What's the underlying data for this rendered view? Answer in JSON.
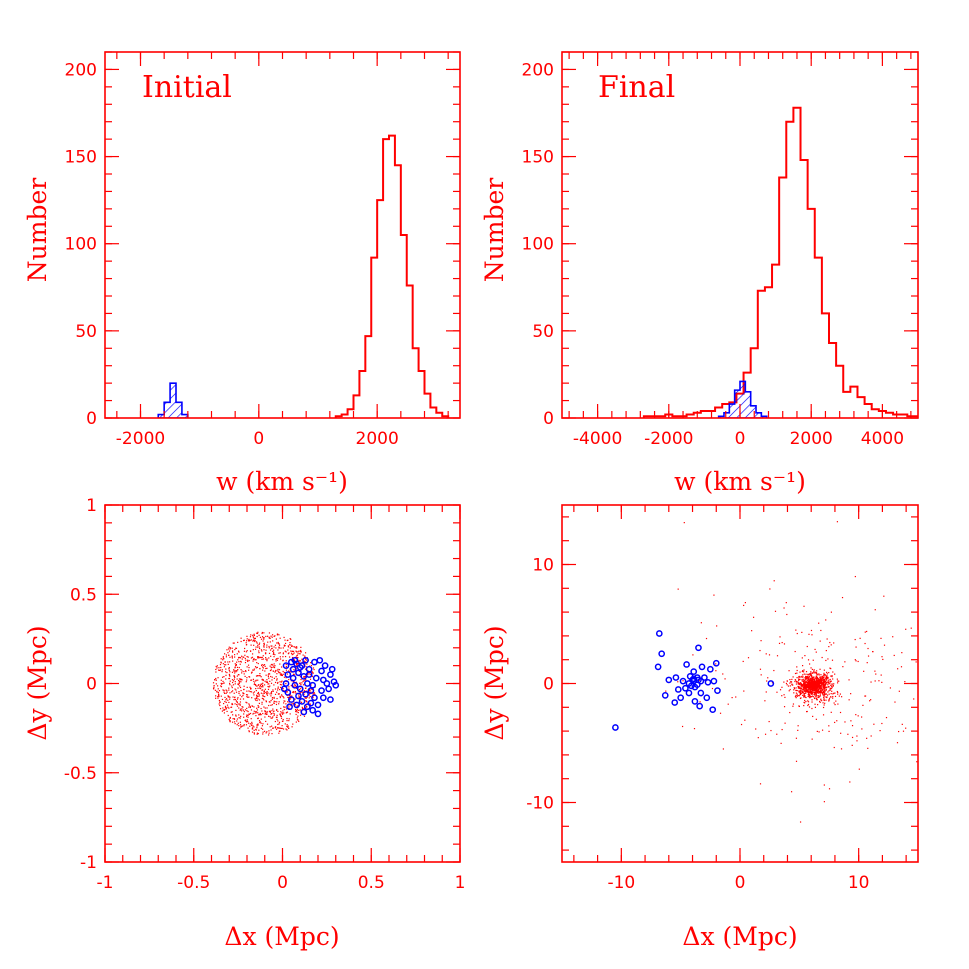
{
  "colors": {
    "primary": "#ff0000",
    "secondary": "#0000ff",
    "background": "#ffffff"
  },
  "chart_data": [
    {
      "id": "p1",
      "type": "histogram",
      "title": "Initial",
      "xlabel": "w (km s⁻¹)",
      "ylabel": "Number",
      "xlim": [
        -2600,
        3400
      ],
      "ylim": [
        0,
        210
      ],
      "xticks": [
        -2000,
        0,
        2000
      ],
      "yticks": [
        0,
        50,
        100,
        150,
        200
      ],
      "series": [
        {
          "color": "#ff0000",
          "bin_start": 1300,
          "bin_width": 100,
          "values": [
            1,
            2,
            5,
            13,
            27,
            47,
            92,
            125,
            160,
            162,
            145,
            105,
            76,
            40,
            27,
            14,
            6,
            3,
            1
          ]
        },
        {
          "color": "#0000ff",
          "hatched": true,
          "bin_start": -1700,
          "bin_width": 100,
          "values": [
            2,
            9,
            20,
            9,
            2
          ]
        }
      ]
    },
    {
      "id": "p2",
      "type": "histogram",
      "title": "Final",
      "xlabel": "w (km s⁻¹)",
      "ylabel": "Number",
      "xlim": [
        -5000,
        5000
      ],
      "ylim": [
        0,
        210
      ],
      "xticks": [
        -4000,
        -2000,
        0,
        2000,
        4000
      ],
      "yticks": [
        0,
        50,
        100,
        150,
        200
      ],
      "series": [
        {
          "color": "#ff0000",
          "bin_start": -2700,
          "bin_width": 200,
          "values": [
            1,
            1,
            1,
            2,
            1,
            1,
            2,
            3,
            4,
            4,
            6,
            8,
            9,
            14,
            26,
            40,
            73,
            75,
            88,
            138,
            170,
            178,
            148,
            120,
            92,
            60,
            43,
            30,
            15,
            18,
            12,
            8,
            5,
            4,
            3,
            2,
            2,
            1,
            1,
            1
          ]
        },
        {
          "color": "#0000ff",
          "hatched": true,
          "bin_start": -600,
          "bin_width": 150,
          "values": [
            1,
            3,
            8,
            16,
            21,
            15,
            7,
            3,
            1
          ]
        }
      ]
    },
    {
      "id": "p3",
      "type": "scatter",
      "xlabel": "Δx (Mpc)",
      "ylabel": "Δy (Mpc)",
      "xlim": [
        -1,
        1
      ],
      "ylim": [
        -1,
        1
      ],
      "xticks": [
        -1,
        -0.5,
        0,
        0.5,
        1
      ],
      "yticks": [
        -1,
        -0.5,
        0,
        0.5,
        1
      ],
      "series": [
        {
          "color": "#ff0000",
          "marker": "dot",
          "kind": "disk",
          "center": [
            -0.1,
            0.0
          ],
          "radius": 0.29,
          "count": 1300
        },
        {
          "color": "#0000ff",
          "marker": "open-circle",
          "points": [
            [
              0.02,
              0.1
            ],
            [
              0.05,
              0.12
            ],
            [
              0.08,
              0.11
            ],
            [
              0.11,
              0.1
            ],
            [
              0.15,
              0.08
            ],
            [
              0.18,
              0.12
            ],
            [
              0.21,
              0.13
            ],
            [
              0.24,
              0.1
            ],
            [
              0.27,
              0.05
            ],
            [
              0.29,
              0.01
            ],
            [
              0.26,
              -0.03
            ],
            [
              0.23,
              -0.08
            ],
            [
              0.2,
              -0.12
            ],
            [
              0.17,
              -0.15
            ],
            [
              0.14,
              -0.13
            ],
            [
              0.11,
              -0.1
            ],
            [
              0.08,
              -0.12
            ],
            [
              0.05,
              -0.09
            ],
            [
              0.03,
              -0.05
            ],
            [
              0.02,
              0.0
            ],
            [
              0.03,
              0.05
            ],
            [
              0.06,
              0.03
            ],
            [
              0.09,
              0.06
            ],
            [
              0.12,
              0.04
            ],
            [
              0.14,
              0.0
            ],
            [
              0.16,
              -0.04
            ],
            [
              0.13,
              -0.06
            ],
            [
              0.1,
              -0.03
            ],
            [
              0.07,
              -0.01
            ],
            [
              0.19,
              0.03
            ],
            [
              0.22,
              0.07
            ],
            [
              0.25,
              0.0
            ],
            [
              0.22,
              -0.04
            ],
            [
              0.18,
              -0.08
            ],
            [
              0.15,
              0.05
            ],
            [
              0.1,
              0.09
            ],
            [
              0.06,
              0.08
            ],
            [
              0.01,
              -0.03
            ],
            [
              0.04,
              -0.13
            ],
            [
              0.12,
              -0.16
            ],
            [
              0.2,
              -0.17
            ],
            [
              0.27,
              -0.09
            ],
            [
              0.3,
              -0.01
            ],
            [
              0.28,
              0.08
            ],
            [
              0.23,
              0.02
            ],
            [
              0.17,
              -0.01
            ],
            [
              0.09,
              -0.07
            ],
            [
              0.07,
              0.13
            ],
            [
              0.13,
              0.13
            ],
            [
              0.16,
              -0.11
            ]
          ]
        }
      ]
    },
    {
      "id": "p4",
      "type": "scatter",
      "xlabel": "Δx (Mpc)",
      "ylabel": "Δy (Mpc)",
      "xlim": [
        -15,
        15
      ],
      "ylim": [
        -15,
        15
      ],
      "xticks": [
        -10,
        0,
        10
      ],
      "yticks": [
        -10,
        0,
        10
      ],
      "series": [
        {
          "color": "#ff0000",
          "marker": "dot",
          "kind": "cluster",
          "center": [
            6.2,
            -0.2
          ],
          "core_sigma": 0.8,
          "halo_sigma": 5.5,
          "count": 1400
        },
        {
          "color": "#0000ff",
          "marker": "open-circle",
          "points": [
            [
              -6.8,
              4.2
            ],
            [
              -6.6,
              2.5
            ],
            [
              -6.9,
              1.4
            ],
            [
              -3.5,
              3.0
            ],
            [
              -2.0,
              1.7
            ],
            [
              -2.5,
              1.2
            ],
            [
              -3.2,
              1.4
            ],
            [
              -4.5,
              1.6
            ],
            [
              -3.9,
              1.0
            ],
            [
              -4.2,
              0.6
            ],
            [
              -3.6,
              0.5
            ],
            [
              -3.9,
              0.2
            ],
            [
              -4.3,
              0.0
            ],
            [
              -3.6,
              -0.1
            ],
            [
              -3.8,
              -0.3
            ],
            [
              -4.0,
              0.3
            ],
            [
              -3.3,
              0.2
            ],
            [
              -3.0,
              0.5
            ],
            [
              -2.7,
              0.1
            ],
            [
              -2.2,
              0.2
            ],
            [
              -4.8,
              0.2
            ],
            [
              -5.4,
              0.5
            ],
            [
              -6.0,
              0.3
            ],
            [
              -5.2,
              -0.5
            ],
            [
              -5.0,
              -1.2
            ],
            [
              -6.3,
              -1.0
            ],
            [
              -4.3,
              -0.8
            ],
            [
              -3.3,
              -0.8
            ],
            [
              -3.8,
              -1.5
            ],
            [
              -2.8,
              -1.2
            ],
            [
              -1.9,
              -0.6
            ],
            [
              -3.4,
              -1.9
            ],
            [
              -2.3,
              -2.2
            ],
            [
              -5.5,
              -1.6
            ],
            [
              -4.6,
              -0.4
            ],
            [
              2.6,
              0.0
            ],
            [
              -10.5,
              -3.7
            ],
            [
              -3.9,
              0.4
            ],
            [
              -4.1,
              -0.2
            ],
            [
              -3.5,
              0.3
            ]
          ]
        }
      ]
    }
  ]
}
